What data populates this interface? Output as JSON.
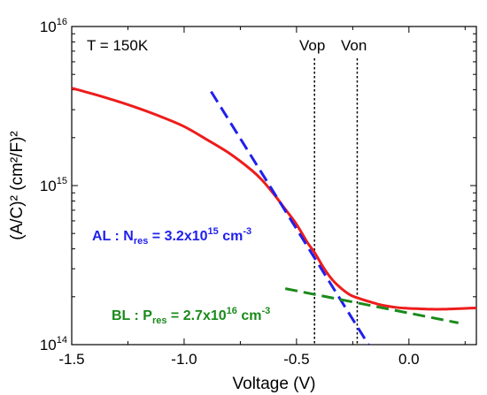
{
  "chart_data": {
    "type": "line",
    "xlabel": "Voltage (V)",
    "ylabel": "(A/C)²  (cm²/F)²",
    "xlim": [
      -1.5,
      0.3
    ],
    "ylim": [
      100000000000000.0,
      1e+16
    ],
    "y_scale": "log",
    "x_ticks": [
      -1.5,
      -1.0,
      -0.5,
      0.0
    ],
    "x_tick_labels": [
      "-1.5",
      "-1.0",
      "-0.5",
      "0.0"
    ],
    "y_ticks": [
      100000000000000.0,
      1000000000000000.0,
      1e+16
    ],
    "y_tick_labels": [
      {
        "base": "10",
        "exp": "14"
      },
      {
        "base": "10",
        "exp": "15"
      },
      {
        "base": "10",
        "exp": "16"
      }
    ],
    "series": [
      {
        "color": "#ee1c1c",
        "style": "solid",
        "x": [
          -1.5,
          -1.4,
          -1.3,
          -1.2,
          -1.1,
          -1.0,
          -0.9,
          -0.8,
          -0.7,
          -0.65,
          -0.6,
          -0.55,
          -0.5,
          -0.45,
          -0.42,
          -0.38,
          -0.34,
          -0.3,
          -0.26,
          -0.22,
          -0.18,
          -0.14,
          -0.1,
          -0.05,
          0.0,
          0.05,
          0.1,
          0.15,
          0.2,
          0.25,
          0.3
        ],
        "y": [
          4100000000000000.0,
          3750000000000000.0,
          3400000000000000.0,
          3050000000000000.0,
          2700000000000000.0,
          2350000000000000.0,
          1950000000000000.0,
          1600000000000000.0,
          1250000000000000.0,
          1070000000000000.0,
          880000000000000.0,
          710000000000000.0,
          570000000000000.0,
          435000000000000.0,
          380000000000000.0,
          305000000000000.0,
          255000000000000.0,
          225000000000000.0,
          205000000000000.0,
          195000000000000.0,
          187000000000000.0,
          180000000000000.0,
          175000000000000.0,
          171000000000000.0,
          169000000000000.0,
          168000000000000.0,
          167000000000000.0,
          167000000000000.0,
          168000000000000.0,
          169000000000000.0,
          170000000000000.0
        ]
      },
      {
        "color": "#1f1fee",
        "style": "dashed",
        "x": [
          -0.88,
          -0.18
        ],
        "y": [
          3900000000000000.0,
          100000000000000.0
        ]
      },
      {
        "color": "#1a8a1a",
        "style": "dashed",
        "x": [
          -0.55,
          0.22
        ],
        "y": [
          225000000000000.0,
          137000000000000.0
        ]
      }
    ],
    "vlines": [
      {
        "x": -0.42,
        "label": "Vop"
      },
      {
        "x": -0.23,
        "label": "Von"
      }
    ],
    "annotations": {
      "temperature": "T = 150K",
      "vop": "Vop",
      "von": "Von",
      "al": {
        "color": "#1f1fee",
        "prefix": "AL : N",
        "sub": "res",
        "mid": " = 3.2x10",
        "sup": "15",
        "suffix": " cm",
        "unit_sup": "-3"
      },
      "bl": {
        "color": "#1a8a1a",
        "prefix": "BL : P",
        "sub": "res",
        "mid": " = 2.7x10",
        "sup": "16",
        "suffix": " cm",
        "unit_sup": "-3"
      }
    }
  }
}
